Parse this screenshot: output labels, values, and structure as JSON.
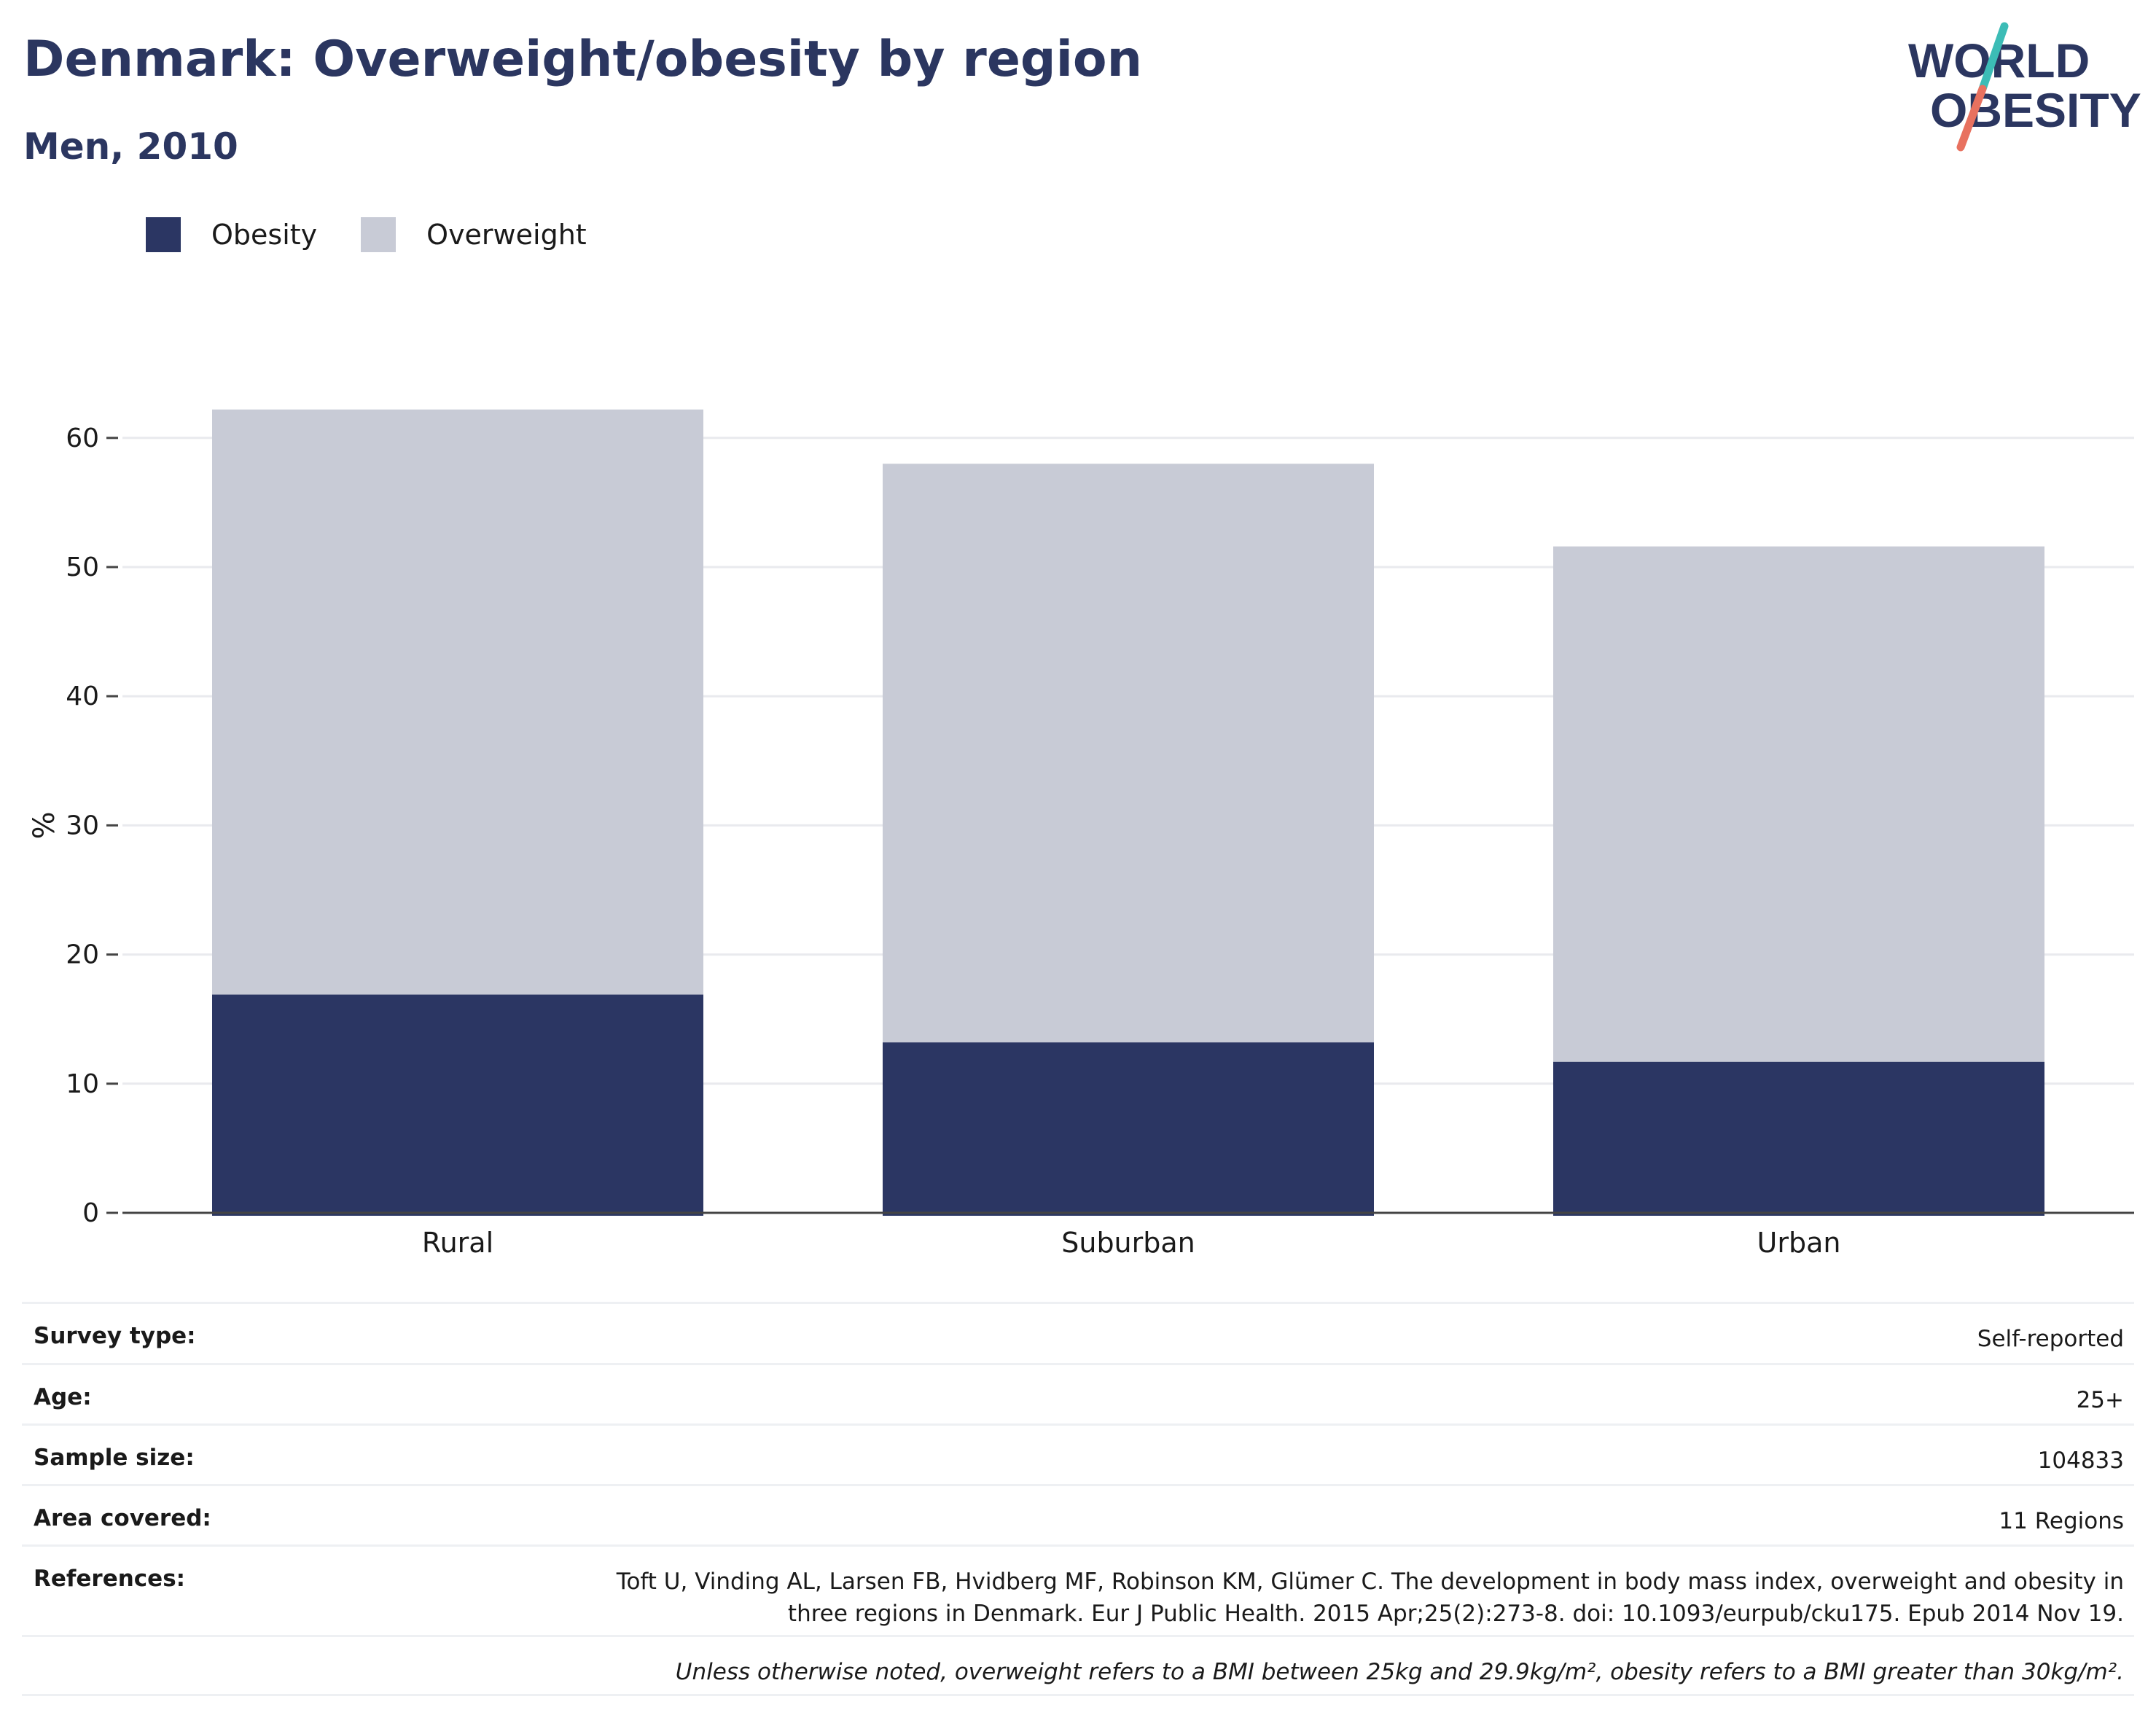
{
  "header": {
    "title": "Denmark: Overweight/obesity by region",
    "subtitle": "Men, 2010"
  },
  "logo": {
    "line1": "WORLD",
    "line2": "OBESITY"
  },
  "colors": {
    "obesity": "#2b3663",
    "overweight": "#c8cbd6",
    "title": "#2b3660",
    "logo_teal": "#3cbcb6",
    "logo_coral": "#e8715f"
  },
  "legend": [
    {
      "label": "Obesity",
      "color": "#2b3663"
    },
    {
      "label": "Overweight",
      "color": "#c8cbd6"
    }
  ],
  "chart_data": {
    "type": "bar",
    "stacked": true,
    "categories": [
      "Rural",
      "Suburban",
      "Urban"
    ],
    "series": [
      {
        "name": "Obesity",
        "values": [
          16.9,
          13.2,
          11.7
        ]
      },
      {
        "name": "Overweight",
        "values": [
          45.3,
          44.8,
          39.9
        ]
      }
    ],
    "ylabel": "%",
    "ylim": [
      0,
      65
    ],
    "yticks": [
      0,
      10,
      20,
      30,
      40,
      50,
      60
    ],
    "grid": true,
    "legend_position": "top-left"
  },
  "info": [
    {
      "label": "Survey type:",
      "value": "Self-reported"
    },
    {
      "label": "Age:",
      "value": "25+"
    },
    {
      "label": "Sample size:",
      "value": "104833"
    },
    {
      "label": "Area covered:",
      "value": "11 Regions"
    },
    {
      "label": "References:",
      "value_line1": "Toft U, Vinding AL, Larsen FB, Hvidberg MF, Robinson KM, Glümer C. The development in body mass index, overweight and obesity in",
      "value_line2": "three regions in Denmark. Eur J Public Health. 2015 Apr;25(2):273-8. doi: 10.1093/eurpub/cku175. Epub 2014 Nov 19."
    }
  ],
  "footnote": "Unless otherwise noted, overweight refers to a BMI between 25kg and 29.9kg/m², obesity refers to a BMI greater than 30kg/m²."
}
